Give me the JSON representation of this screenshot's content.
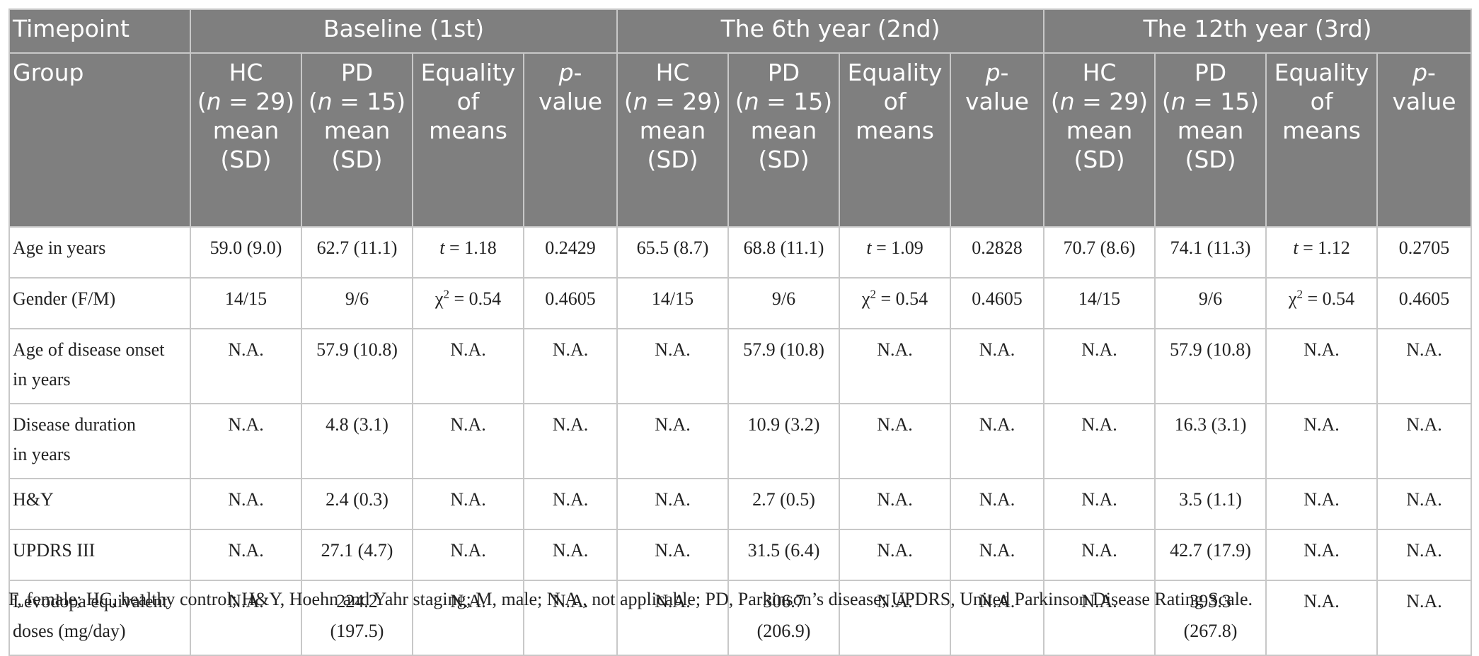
{
  "table": {
    "header": {
      "timepoint_label": "Timepoint",
      "group_label": "Group",
      "timepoints": [
        "Baseline (1st)",
        "The 6th year (2nd)",
        "The 12th year (3rd)"
      ],
      "subheaders": {
        "hc": {
          "l1": "HC",
          "l2_pre": "(",
          "l2_n": "n",
          "l2_post": " = 29)",
          "l3": "mean",
          "l4": "(SD)"
        },
        "pd": {
          "l1": "PD",
          "l2_pre": "(",
          "l2_n": "n",
          "l2_post": " = 15)",
          "l3": "mean",
          "l4": "(SD)"
        },
        "eq": {
          "l1": "Equality",
          "l2": "of",
          "l3": "means"
        },
        "p": {
          "l1_ital": "p",
          "l1_rest": "-",
          "l2": "value"
        }
      }
    },
    "rows": {
      "age": {
        "label": "Age in years",
        "cells": [
          {
            "hc": "59.0 (9.0)",
            "pd": "62.7 (11.1)",
            "eq_sym": "t",
            "eq_val": " = 1.18",
            "p": "0.2429"
          },
          {
            "hc": "65.5 (8.7)",
            "pd": "68.8 (11.1)",
            "eq_sym": "t",
            "eq_val": " = 1.09",
            "p": "0.2828"
          },
          {
            "hc": "70.7 (8.6)",
            "pd": "74.1 (11.3)",
            "eq_sym": "t",
            "eq_val": " = 1.12",
            "p": "0.2705"
          }
        ]
      },
      "gender": {
        "label": "Gender (F/M)",
        "cells": [
          {
            "hc": "14/15",
            "pd": "9/6",
            "eq_sym": "χ",
            "eq_sup": "2",
            "eq_val": " = 0.54",
            "p": "0.4605"
          },
          {
            "hc": "14/15",
            "pd": "9/6",
            "eq_sym": "χ",
            "eq_sup": "2",
            "eq_val": " = 0.54",
            "p": "0.4605"
          },
          {
            "hc": "14/15",
            "pd": "9/6",
            "eq_sym": "χ",
            "eq_sup": "2",
            "eq_val": " = 0.54",
            "p": "0.4605"
          }
        ]
      },
      "onset": {
        "label_l1": "Age of disease onset",
        "label_l2": "in years",
        "cells": [
          {
            "hc": "N.A.",
            "pd": "57.9 (10.8)",
            "eq": "N.A.",
            "p": "N.A."
          },
          {
            "hc": "N.A.",
            "pd": "57.9 (10.8)",
            "eq": "N.A.",
            "p": "N.A."
          },
          {
            "hc": "N.A.",
            "pd": "57.9 (10.8)",
            "eq": "N.A.",
            "p": "N.A."
          }
        ]
      },
      "duration": {
        "label_l1": "Disease duration",
        "label_l2": "in years",
        "cells": [
          {
            "hc": "N.A.",
            "pd": "4.8 (3.1)",
            "eq": "N.A.",
            "p": "N.A."
          },
          {
            "hc": "N.A.",
            "pd": "10.9 (3.2)",
            "eq": "N.A.",
            "p": "N.A."
          },
          {
            "hc": "N.A.",
            "pd": "16.3 (3.1)",
            "eq": "N.A.",
            "p": "N.A."
          }
        ]
      },
      "hy": {
        "label": "H&Y",
        "cells": [
          {
            "hc": "N.A.",
            "pd": "2.4 (0.3)",
            "eq": "N.A.",
            "p": "N.A."
          },
          {
            "hc": "N.A.",
            "pd": "2.7 (0.5)",
            "eq": "N.A.",
            "p": "N.A."
          },
          {
            "hc": "N.A.",
            "pd": "3.5 (1.1)",
            "eq": "N.A.",
            "p": "N.A."
          }
        ]
      },
      "updrs": {
        "label": "UPDRS III",
        "cells": [
          {
            "hc": "N.A.",
            "pd": "27.1 (4.7)",
            "eq": "N.A.",
            "p": "N.A."
          },
          {
            "hc": "N.A.",
            "pd": "31.5 (6.4)",
            "eq": "N.A.",
            "p": "N.A."
          },
          {
            "hc": "N.A.",
            "pd": "42.7 (17.9)",
            "eq": "N.A.",
            "p": "N.A."
          }
        ]
      },
      "levodopa": {
        "label_l1": "Levodopa equivalent",
        "label_l2": "doses (mg/day)",
        "cells": [
          {
            "hc": "N.A.",
            "pd_l1": "224.2",
            "pd_l2": "(197.5)",
            "eq": "N.A.",
            "p": "N.A."
          },
          {
            "hc": "N.A.",
            "pd_l1": "306.7",
            "pd_l2": "(206.9)",
            "eq": "N.A.",
            "p": "N.A."
          },
          {
            "hc": "N.A.",
            "pd_l1": "393.3",
            "pd_l2": "(267.8)",
            "eq": "N.A.",
            "p": "N.A."
          }
        ]
      }
    }
  },
  "footnote": "F, female; HC, healthy control; H&Y, Hoehn and Yahr staging; M, male; N.A., not applicable; PD, Parkinson’s disease; UPDRS, United Parkinson Disease Rating Scale.",
  "colors": {
    "header_bg": "#7f7f7f",
    "header_text": "#ffffff",
    "border": "#c8c8c8",
    "body_text": "#222222"
  }
}
